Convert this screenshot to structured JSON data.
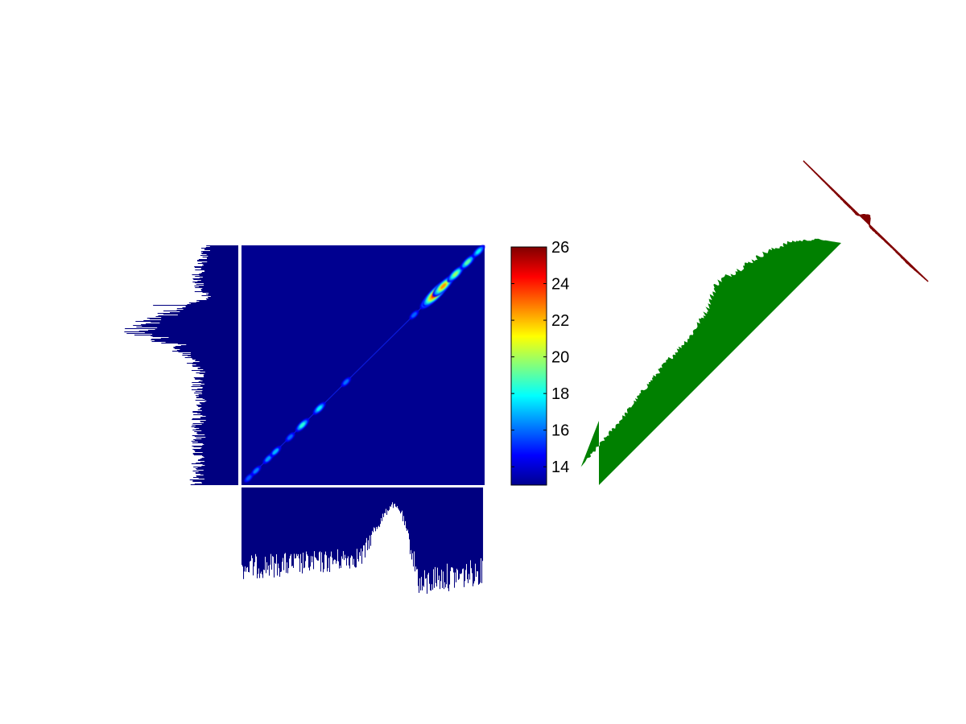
{
  "chart_data": [
    {
      "type": "heatmap",
      "title": "",
      "xlabel": "",
      "ylabel": "",
      "colormap": "jet",
      "background_color": "#000090",
      "colorbar": {
        "min": 13,
        "max": 26,
        "ticks": [
          {
            "value": 14,
            "label": "14"
          },
          {
            "value": 16,
            "label": "16"
          },
          {
            "value": 18,
            "label": "18"
          },
          {
            "value": 20,
            "label": "20"
          },
          {
            "value": 22,
            "label": "22"
          },
          {
            "value": 24,
            "label": "24"
          },
          {
            "value": 26,
            "label": "26"
          }
        ]
      },
      "diagonal_hotspots": [
        {
          "pos": 0.03,
          "value": 14.2
        },
        {
          "pos": 0.06,
          "value": 14.8
        },
        {
          "pos": 0.11,
          "value": 15.2
        },
        {
          "pos": 0.14,
          "value": 15.6
        },
        {
          "pos": 0.2,
          "value": 14.5
        },
        {
          "pos": 0.25,
          "value": 17.2
        },
        {
          "pos": 0.32,
          "value": 16.5
        },
        {
          "pos": 0.43,
          "value": 14.6
        },
        {
          "pos": 0.71,
          "value": 14.4
        },
        {
          "pos": 0.78,
          "value": 22.5
        },
        {
          "pos": 0.8,
          "value": 25.8
        },
        {
          "pos": 0.83,
          "value": 22.0
        },
        {
          "pos": 0.88,
          "value": 19.0
        },
        {
          "pos": 0.93,
          "value": 18.0
        },
        {
          "pos": 0.975,
          "value": 16.5
        }
      ]
    },
    {
      "type": "bar",
      "orientation": "horizontal",
      "color": "#000080",
      "marginal": "left",
      "profile": [
        {
          "pos": 0.0,
          "value": 0.28
        },
        {
          "pos": 0.08,
          "value": 0.35
        },
        {
          "pos": 0.17,
          "value": 0.38
        },
        {
          "pos": 0.22,
          "value": 0.3
        },
        {
          "pos": 0.3,
          "value": 0.75
        },
        {
          "pos": 0.36,
          "value": 0.95
        },
        {
          "pos": 0.41,
          "value": 0.6
        },
        {
          "pos": 0.5,
          "value": 0.38
        },
        {
          "pos": 0.65,
          "value": 0.36
        },
        {
          "pos": 0.8,
          "value": 0.37
        },
        {
          "pos": 1.0,
          "value": 0.38
        }
      ]
    },
    {
      "type": "bar",
      "orientation": "vertical",
      "color": "#000080",
      "marginal": "bottom",
      "profile": [
        {
          "pos": 0.0,
          "value": 0.28
        },
        {
          "pos": 0.15,
          "value": 0.3
        },
        {
          "pos": 0.35,
          "value": 0.33
        },
        {
          "pos": 0.5,
          "value": 0.38
        },
        {
          "pos": 0.55,
          "value": 0.62
        },
        {
          "pos": 0.62,
          "value": 0.85
        },
        {
          "pos": 0.66,
          "value": 0.78
        },
        {
          "pos": 0.7,
          "value": 0.45
        },
        {
          "pos": 0.74,
          "value": 0.1
        },
        {
          "pos": 0.8,
          "value": 0.18
        },
        {
          "pos": 0.9,
          "value": 0.2
        },
        {
          "pos": 1.0,
          "value": 0.25
        }
      ]
    },
    {
      "type": "area",
      "color": "#008000",
      "marginal": "rotated-diagonal",
      "profile": [
        {
          "pos": 0.0,
          "value": 0.16
        },
        {
          "pos": 0.1,
          "value": 0.18
        },
        {
          "pos": 0.2,
          "value": 0.2
        },
        {
          "pos": 0.3,
          "value": 0.23
        },
        {
          "pos": 0.4,
          "value": 0.25
        },
        {
          "pos": 0.5,
          "value": 0.26
        },
        {
          "pos": 0.58,
          "value": 0.3
        },
        {
          "pos": 0.66,
          "value": 0.38
        },
        {
          "pos": 0.74,
          "value": 0.34
        },
        {
          "pos": 0.82,
          "value": 0.3
        },
        {
          "pos": 0.9,
          "value": 0.23
        },
        {
          "pos": 0.96,
          "value": 0.12
        },
        {
          "pos": 1.0,
          "value": 0.0
        }
      ]
    },
    {
      "type": "area",
      "color": "#800000",
      "marginal": "anti-diagonal",
      "profile": [
        {
          "pos": 0.0,
          "value": 0.0
        },
        {
          "pos": 0.15,
          "value": -0.12
        },
        {
          "pos": 0.3,
          "value": -0.25
        },
        {
          "pos": 0.4,
          "value": -0.3
        },
        {
          "pos": 0.44,
          "value": -0.4
        },
        {
          "pos": 0.46,
          "value": 0.3
        },
        {
          "pos": 0.49,
          "value": 1.0
        },
        {
          "pos": 0.52,
          "value": 0.3
        },
        {
          "pos": 0.54,
          "value": -0.35
        },
        {
          "pos": 0.62,
          "value": -0.28
        },
        {
          "pos": 0.72,
          "value": -0.2
        },
        {
          "pos": 0.85,
          "value": -0.32
        },
        {
          "pos": 1.0,
          "value": 0.0
        }
      ]
    }
  ]
}
